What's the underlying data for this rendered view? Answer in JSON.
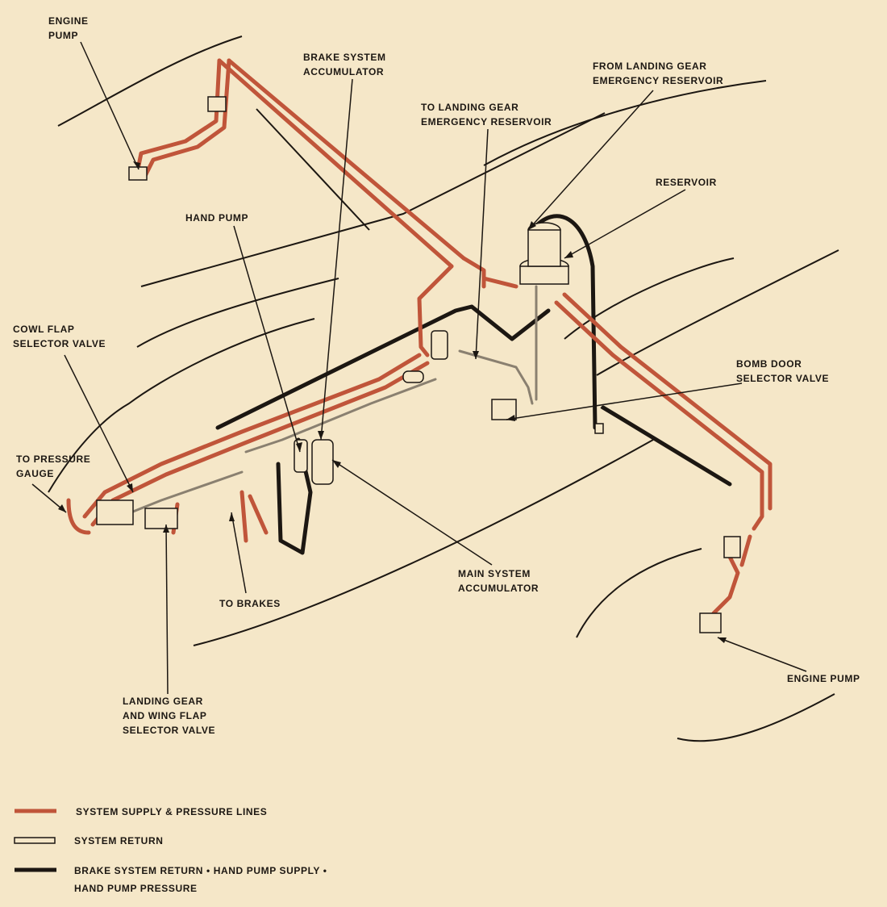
{
  "colors": {
    "background": "#f5e7c8",
    "supply_line": "#c0553a",
    "return_line": "#8a8070",
    "brake_line": "#1c1712",
    "outline": "#1c1712"
  },
  "labels": {
    "engine_pump_left": [
      "ENGINE",
      "PUMP"
    ],
    "brake_system_accumulator": [
      "BRAKE SYSTEM",
      "ACCUMULATOR"
    ],
    "from_landing_gear_reservoir": [
      "FROM LANDING GEAR",
      "EMERGENCY RESERVOIR"
    ],
    "to_landing_gear_reservoir": [
      "TO LANDING GEAR",
      "EMERGENCY RESERVOIR"
    ],
    "reservoir": [
      "RESERVOIR"
    ],
    "hand_pump": [
      "HAND PUMP"
    ],
    "cowl_flap_selector_valve": [
      "COWL FLAP",
      "SELECTOR VALVE"
    ],
    "bomb_door_selector_valve": [
      "BOMB DOOR",
      "SELECTOR VALVE"
    ],
    "to_pressure_gauge": [
      "TO PRESSURE",
      "GAUGE"
    ],
    "main_system_accumulator": [
      "MAIN SYSTEM",
      "ACCUMULATOR"
    ],
    "to_brakes": [
      "TO BRAKES"
    ],
    "landing_gear_wing_flap_valve": [
      "LANDING GEAR",
      "AND WING FLAP",
      "SELECTOR VALVE"
    ],
    "engine_pump_right": [
      "ENGINE PUMP"
    ]
  },
  "legend": {
    "supply": "SYSTEM SUPPLY & PRESSURE LINES",
    "return": "SYSTEM RETURN",
    "brake_line1": "BRAKE SYSTEM RETURN  •  HAND PUMP SUPPLY  •",
    "brake_line2": "HAND PUMP PRESSURE"
  }
}
